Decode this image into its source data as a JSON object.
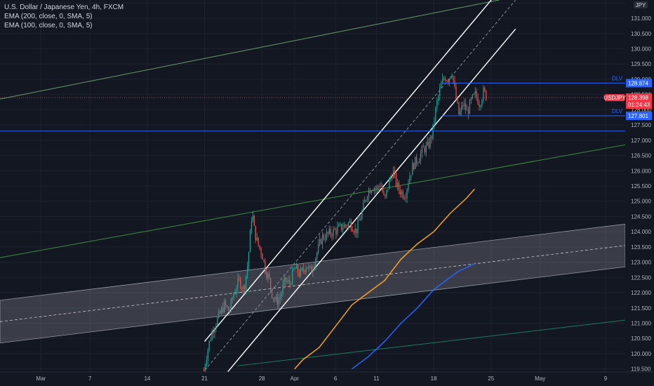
{
  "legend": {
    "title": "U.S. Dollar / Japanese Yen, 4h, FXCM",
    "ema200": "EMA (200, close, 0, SMA, 5)",
    "ema100": "EMA (100, close, 0, SMA, 5)"
  },
  "currency_badge": "JPY",
  "price_tag": {
    "symbol": "USDJPY",
    "price": "128.398",
    "countdown": "01:24:43"
  },
  "dlv_labels": [
    {
      "text": "DLV",
      "price": "128.874"
    },
    {
      "text": "DLV",
      "price": "127.801"
    }
  ],
  "colors": {
    "background": "#131722",
    "up": "#26a69a",
    "down": "#ef5350",
    "blue_level": "#2962ff",
    "ema200": "#2962ff",
    "ema100": "#f7a21b",
    "channel": "#ffffff",
    "green_line": "#4caf50"
  },
  "chart_data": {
    "type": "candlestick",
    "symbol": "USDJPY",
    "timeframe": "4h",
    "y_tick_labels": [
      "119.500",
      "120.000",
      "120.500",
      "121.000",
      "121.500",
      "122.000",
      "122.500",
      "123.000",
      "123.500",
      "124.000",
      "124.500",
      "125.000",
      "125.500",
      "126.000",
      "126.500",
      "127.000",
      "127.500",
      "128.000",
      "128.500",
      "129.000",
      "129.500",
      "130.000",
      "130.500",
      "131.000",
      "131.500"
    ],
    "ylim": [
      119.4,
      131.6
    ],
    "x_tick_labels": [
      "Mar",
      "7",
      "14",
      "21",
      "28",
      "Apr",
      "6",
      "11",
      "18",
      "25",
      "May",
      "9"
    ],
    "x_tick_days": [
      0,
      6,
      13,
      20,
      27,
      31,
      36,
      41,
      48,
      55,
      61,
      69
    ],
    "xlim_days": [
      -5,
      71.4
    ],
    "close_path": [
      [
        19.9,
        119.45
      ],
      [
        20.5,
        120.3
      ],
      [
        21.0,
        120.8
      ],
      [
        21.7,
        121.2
      ],
      [
        22.4,
        121.6
      ],
      [
        23.0,
        121.4
      ],
      [
        23.6,
        122.0
      ],
      [
        24.2,
        122.4
      ],
      [
        24.8,
        122.1
      ],
      [
        25.3,
        123.0
      ],
      [
        25.8,
        124.7
      ],
      [
        26.1,
        124.0
      ],
      [
        26.5,
        123.6
      ],
      [
        27.0,
        123.3
      ],
      [
        27.4,
        122.8
      ],
      [
        27.9,
        122.4
      ],
      [
        28.3,
        121.9
      ],
      [
        28.8,
        121.7
      ],
      [
        29.3,
        121.9
      ],
      [
        29.8,
        122.4
      ],
      [
        30.4,
        122.3
      ],
      [
        31.0,
        122.8
      ],
      [
        31.7,
        122.6
      ],
      [
        32.4,
        122.9
      ],
      [
        33.0,
        122.7
      ],
      [
        33.6,
        123.2
      ],
      [
        34.3,
        123.8
      ],
      [
        35.0,
        123.9
      ],
      [
        35.7,
        124.0
      ],
      [
        36.4,
        124.1
      ],
      [
        37.1,
        124.2
      ],
      [
        37.8,
        124.3
      ],
      [
        38.5,
        124.0
      ],
      [
        39.2,
        124.6
      ],
      [
        39.9,
        125.3
      ],
      [
        40.5,
        125.5
      ],
      [
        41.0,
        125.4
      ],
      [
        41.5,
        125.6
      ],
      [
        42.0,
        125.0
      ],
      [
        42.5,
        125.6
      ],
      [
        43.0,
        126.0
      ],
      [
        43.5,
        125.5
      ],
      [
        44.0,
        125.3
      ],
      [
        44.5,
        125.2
      ],
      [
        45.0,
        125.8
      ],
      [
        45.5,
        126.2
      ],
      [
        46.1,
        126.4
      ],
      [
        46.7,
        126.7
      ],
      [
        47.3,
        126.8
      ],
      [
        47.8,
        127.2
      ],
      [
        48.3,
        128.1
      ],
      [
        48.8,
        128.7
      ],
      [
        49.3,
        129.1
      ],
      [
        49.8,
        129.0
      ],
      [
        50.2,
        129.3
      ],
      [
        50.7,
        128.4
      ],
      [
        51.1,
        127.8
      ],
      [
        51.6,
        128.2
      ],
      [
        52.1,
        127.9
      ],
      [
        52.6,
        128.3
      ],
      [
        53.1,
        128.5
      ],
      [
        53.6,
        128.2
      ],
      [
        54.1,
        128.6
      ],
      [
        54.5,
        128.4
      ]
    ],
    "indicators": {
      "ema100": {
        "name": "EMA (100, close, 0, SMA, 5)",
        "points": [
          [
            31.0,
            119.5
          ],
          [
            32.0,
            119.8
          ],
          [
            34.0,
            120.2
          ],
          [
            36.0,
            120.9
          ],
          [
            38.0,
            121.6
          ],
          [
            40.0,
            122.0
          ],
          [
            42.0,
            122.4
          ],
          [
            44.0,
            123.1
          ],
          [
            46.0,
            123.6
          ],
          [
            48.0,
            124.0
          ],
          [
            50.0,
            124.6
          ],
          [
            52.0,
            125.1
          ],
          [
            53.0,
            125.4
          ]
        ]
      },
      "ema200": {
        "name": "EMA (200, close, 0, SMA, 5)",
        "points": [
          [
            38.0,
            119.5
          ],
          [
            40.0,
            119.9
          ],
          [
            42.0,
            120.4
          ],
          [
            44.0,
            121.0
          ],
          [
            46.0,
            121.5
          ],
          [
            48.0,
            122.1
          ],
          [
            50.0,
            122.5
          ],
          [
            51.0,
            122.7
          ],
          [
            53.0,
            122.95
          ]
        ]
      }
    },
    "levels": [
      {
        "label": "DLV",
        "price": 128.874,
        "from_day": 49.0
      },
      {
        "label": "DLV",
        "price": 127.801,
        "from_day": 49.0
      },
      {
        "price": 127.3,
        "from_day": -5
      }
    ],
    "current_price": 128.398,
    "channels": [
      {
        "name": "rising-channel",
        "from": [
          20.0,
          119.45
        ],
        "to": [
          58.0,
          131.6
        ],
        "width": 0.95
      }
    ],
    "shaded_band": {
      "from": [
        -5,
        121.05
      ],
      "to": [
        71.4,
        123.55
      ],
      "half_width": 0.7
    },
    "trend_lines": [
      {
        "from": [
          -5,
          128.35
        ],
        "to": [
          56.0,
          131.6
        ]
      },
      {
        "from": [
          -5,
          123.15
        ],
        "to": [
          71.4,
          126.85
        ]
      },
      {
        "from": [
          24.0,
          119.6
        ],
        "to": [
          71.4,
          121.1
        ]
      }
    ]
  }
}
